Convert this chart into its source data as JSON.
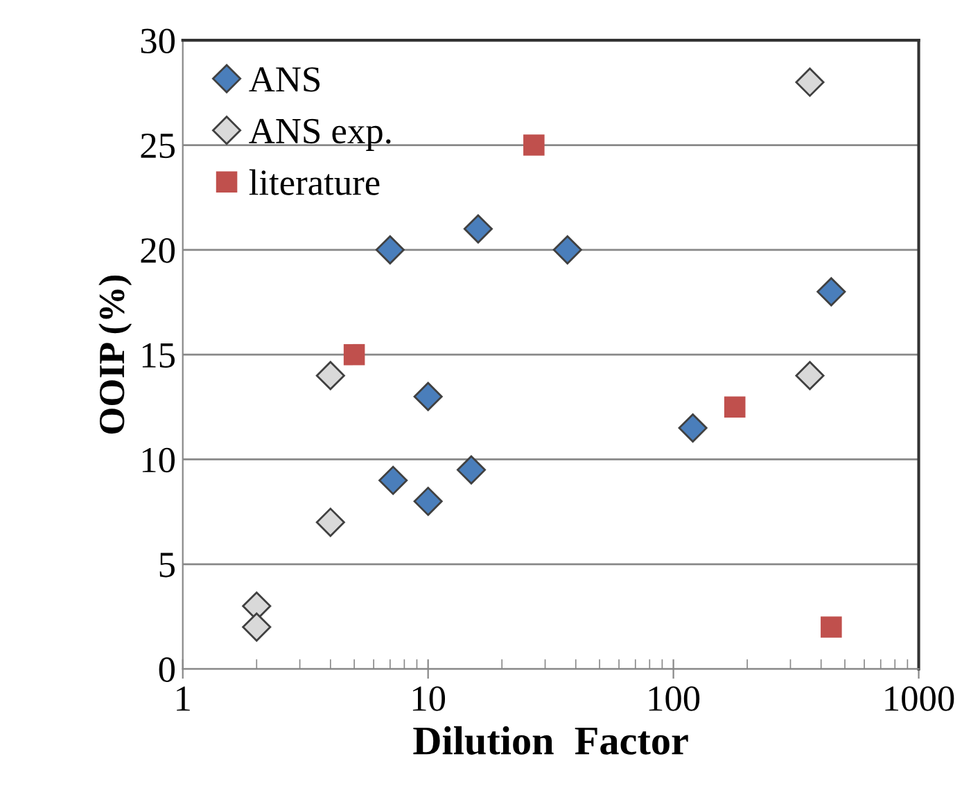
{
  "chart_data": {
    "type": "scatter",
    "xlabel": "Dilution  Factor",
    "ylabel": "OOIP (%)",
    "log": "x",
    "xlim": [
      1,
      1000
    ],
    "xticks": [
      1,
      10,
      100,
      1000
    ],
    "ylim": [
      0,
      30
    ],
    "yticks": [
      0,
      5,
      10,
      15,
      20,
      25,
      30
    ],
    "grid": "y",
    "legend": "top left",
    "series": [
      {
        "name": "ANS",
        "color": "#4a7ebb",
        "marker": "diamond",
        "x": [
          7,
          7.2,
          10,
          10,
          15,
          16,
          37,
          120,
          440
        ],
        "values": [
          20,
          9,
          13,
          8,
          9.5,
          21,
          20,
          11.5,
          18
        ]
      },
      {
        "name": "ANS exp.",
        "color": "#d9d9d9",
        "marker": "diamond",
        "x": [
          4,
          4,
          2,
          2,
          360,
          360
        ],
        "values": [
          14,
          7,
          3,
          2,
          28,
          14
        ]
      },
      {
        "name": "literature",
        "color": "#c0504d",
        "marker": "square",
        "x": [
          5,
          27,
          178,
          440
        ],
        "values": [
          15,
          25,
          12.5,
          2
        ]
      }
    ]
  }
}
